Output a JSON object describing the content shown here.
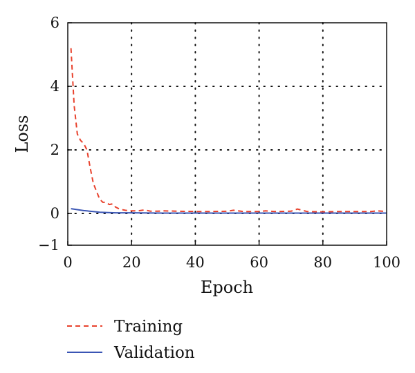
{
  "chart_data": {
    "type": "line",
    "title": "",
    "xlabel": "Epoch",
    "ylabel": "Loss",
    "xlim": [
      0,
      100
    ],
    "ylim": [
      -1,
      6
    ],
    "xticks": [
      0,
      20,
      40,
      60,
      80,
      100
    ],
    "xtick_labels": [
      "0",
      "20",
      "40",
      "60",
      "80",
      "100"
    ],
    "yticks": [
      -1,
      0,
      2,
      4,
      6
    ],
    "ytick_labels": [
      "−1",
      "0",
      "2",
      "4",
      "6"
    ],
    "grid": true,
    "legend_position": "below",
    "series": [
      {
        "name": "Training",
        "color": "#e8412c",
        "style": "dashed",
        "x": [
          1,
          2,
          3,
          4,
          5,
          6,
          7,
          8,
          9,
          10,
          11,
          12,
          13,
          14,
          15,
          16,
          17,
          18,
          19,
          20,
          22,
          24,
          26,
          28,
          30,
          35,
          40,
          45,
          50,
          52,
          55,
          60,
          62,
          65,
          70,
          72,
          75,
          80,
          85,
          90,
          95,
          97,
          100
        ],
        "y": [
          5.2,
          3.4,
          2.5,
          2.3,
          2.2,
          2.0,
          1.45,
          0.95,
          0.7,
          0.45,
          0.35,
          0.35,
          0.28,
          0.3,
          0.2,
          0.15,
          0.12,
          0.1,
          0.09,
          0.08,
          0.08,
          0.11,
          0.07,
          0.07,
          0.08,
          0.07,
          0.06,
          0.06,
          0.07,
          0.1,
          0.06,
          0.06,
          0.08,
          0.06,
          0.07,
          0.14,
          0.06,
          0.05,
          0.06,
          0.06,
          0.06,
          0.08,
          0.06
        ]
      },
      {
        "name": "Validation",
        "color": "#3a55b4",
        "style": "solid",
        "x": [
          1,
          3,
          5,
          8,
          10,
          12,
          15,
          20,
          30,
          40,
          50,
          60,
          70,
          80,
          90,
          100
        ],
        "y": [
          0.15,
          0.12,
          0.09,
          0.06,
          0.04,
          0.03,
          0.02,
          0.02,
          0.01,
          0.01,
          0.01,
          0.01,
          0.01,
          0.01,
          0.01,
          0.01
        ]
      }
    ]
  }
}
